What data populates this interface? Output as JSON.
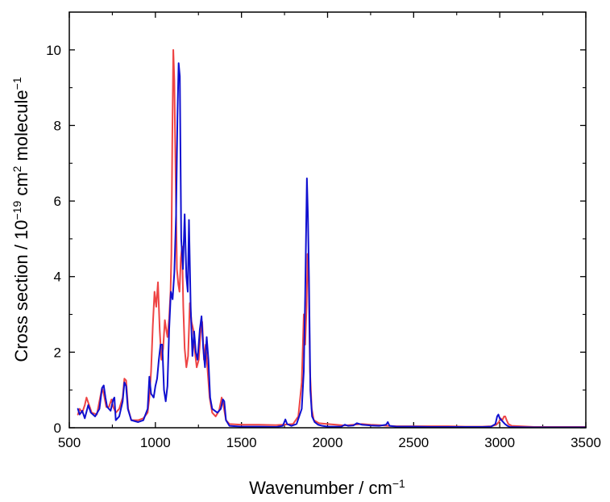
{
  "chart_data": {
    "type": "line",
    "title": "",
    "xlabel": "Wavenumber / cm",
    "xlabel_sup": "−1",
    "ylabel_parts": {
      "a": "Cross section / 10",
      "b": "−19",
      "c": " cm",
      "d": "2",
      "e": " molecule",
      "f": "−1"
    },
    "xlim": [
      500,
      3500
    ],
    "ylim": [
      0,
      11
    ],
    "xticks": [
      500,
      1000,
      1500,
      2000,
      2500,
      3000,
      3500
    ],
    "yticks": [
      0,
      2,
      4,
      6,
      8,
      10
    ],
    "grid": false,
    "legend": "none",
    "series": [
      {
        "color": "#1010d0",
        "points": [
          [
            550,
            0.5
          ],
          [
            560,
            0.35
          ],
          [
            575,
            0.45
          ],
          [
            590,
            0.25
          ],
          [
            610,
            0.6
          ],
          [
            625,
            0.4
          ],
          [
            650,
            0.3
          ],
          [
            675,
            0.5
          ],
          [
            690,
            1.05
          ],
          [
            700,
            1.12
          ],
          [
            710,
            0.8
          ],
          [
            720,
            0.55
          ],
          [
            740,
            0.45
          ],
          [
            755,
            0.75
          ],
          [
            762,
            0.8
          ],
          [
            770,
            0.2
          ],
          [
            790,
            0.3
          ],
          [
            810,
            0.7
          ],
          [
            820,
            1.2
          ],
          [
            830,
            1.1
          ],
          [
            840,
            0.5
          ],
          [
            860,
            0.2
          ],
          [
            900,
            0.15
          ],
          [
            930,
            0.2
          ],
          [
            955,
            0.5
          ],
          [
            965,
            1.35
          ],
          [
            975,
            0.9
          ],
          [
            990,
            0.8
          ],
          [
            1000,
            1.1
          ],
          [
            1010,
            1.3
          ],
          [
            1020,
            1.8
          ],
          [
            1030,
            2.2
          ],
          [
            1040,
            2.2
          ],
          [
            1050,
            1.0
          ],
          [
            1060,
            0.7
          ],
          [
            1070,
            1.1
          ],
          [
            1080,
            2.6
          ],
          [
            1090,
            3.6
          ],
          [
            1100,
            3.4
          ],
          [
            1110,
            4.1
          ],
          [
            1120,
            5.6
          ],
          [
            1128,
            8.2
          ],
          [
            1135,
            9.65
          ],
          [
            1142,
            9.3
          ],
          [
            1150,
            5.0
          ],
          [
            1160,
            4.2
          ],
          [
            1170,
            5.65
          ],
          [
            1180,
            4.0
          ],
          [
            1188,
            3.6
          ],
          [
            1195,
            5.5
          ],
          [
            1205,
            3.2
          ],
          [
            1215,
            1.9
          ],
          [
            1225,
            2.55
          ],
          [
            1235,
            2.0
          ],
          [
            1245,
            1.8
          ],
          [
            1258,
            2.6
          ],
          [
            1268,
            2.95
          ],
          [
            1278,
            2.1
          ],
          [
            1288,
            1.6
          ],
          [
            1298,
            2.4
          ],
          [
            1308,
            1.8
          ],
          [
            1318,
            0.8
          ],
          [
            1330,
            0.5
          ],
          [
            1345,
            0.45
          ],
          [
            1360,
            0.4
          ],
          [
            1380,
            0.5
          ],
          [
            1392,
            0.75
          ],
          [
            1400,
            0.7
          ],
          [
            1410,
            0.2
          ],
          [
            1430,
            0.05
          ],
          [
            1500,
            0.03
          ],
          [
            1600,
            0.03
          ],
          [
            1700,
            0.02
          ],
          [
            1740,
            0.05
          ],
          [
            1755,
            0.22
          ],
          [
            1765,
            0.1
          ],
          [
            1790,
            0.05
          ],
          [
            1820,
            0.1
          ],
          [
            1850,
            0.5
          ],
          [
            1862,
            1.5
          ],
          [
            1870,
            3.5
          ],
          [
            1876,
            5.4
          ],
          [
            1880,
            6.6
          ],
          [
            1886,
            5.6
          ],
          [
            1892,
            4.0
          ],
          [
            1900,
            1.0
          ],
          [
            1910,
            0.3
          ],
          [
            1925,
            0.15
          ],
          [
            1945,
            0.08
          ],
          [
            1970,
            0.05
          ],
          [
            2000,
            0.03
          ],
          [
            2050,
            0.03
          ],
          [
            2080,
            0.03
          ],
          [
            2100,
            0.08
          ],
          [
            2120,
            0.05
          ],
          [
            2150,
            0.06
          ],
          [
            2170,
            0.12
          ],
          [
            2200,
            0.08
          ],
          [
            2250,
            0.06
          ],
          [
            2300,
            0.05
          ],
          [
            2340,
            0.08
          ],
          [
            2350,
            0.15
          ],
          [
            2360,
            0.05
          ],
          [
            2400,
            0.03
          ],
          [
            2500,
            0.03
          ],
          [
            2600,
            0.02
          ],
          [
            2700,
            0.02
          ],
          [
            2800,
            0.02
          ],
          [
            2900,
            0.02
          ],
          [
            2950,
            0.03
          ],
          [
            2975,
            0.1
          ],
          [
            2985,
            0.3
          ],
          [
            2992,
            0.35
          ],
          [
            3000,
            0.25
          ],
          [
            3010,
            0.2
          ],
          [
            3020,
            0.15
          ],
          [
            3030,
            0.1
          ],
          [
            3045,
            0.05
          ],
          [
            3060,
            0.02
          ],
          [
            3200,
            0.01
          ],
          [
            3400,
            0.01
          ],
          [
            3500,
            0.01
          ]
        ]
      },
      {
        "color": "#ee4444",
        "points": [
          [
            550,
            0.35
          ],
          [
            560,
            0.5
          ],
          [
            575,
            0.4
          ],
          [
            590,
            0.6
          ],
          [
            600,
            0.8
          ],
          [
            615,
            0.6
          ],
          [
            630,
            0.4
          ],
          [
            660,
            0.35
          ],
          [
            675,
            0.7
          ],
          [
            690,
            1.05
          ],
          [
            700,
            0.9
          ],
          [
            715,
            0.55
          ],
          [
            730,
            0.55
          ],
          [
            745,
            0.75
          ],
          [
            755,
            0.55
          ],
          [
            770,
            0.4
          ],
          [
            790,
            0.5
          ],
          [
            810,
            0.8
          ],
          [
            820,
            1.3
          ],
          [
            830,
            1.25
          ],
          [
            842,
            0.5
          ],
          [
            860,
            0.2
          ],
          [
            900,
            0.2
          ],
          [
            930,
            0.25
          ],
          [
            955,
            0.4
          ],
          [
            965,
            0.8
          ],
          [
            975,
            1.5
          ],
          [
            985,
            2.7
          ],
          [
            995,
            3.6
          ],
          [
            1005,
            3.2
          ],
          [
            1015,
            3.85
          ],
          [
            1025,
            2.6
          ],
          [
            1035,
            1.8
          ],
          [
            1045,
            2.1
          ],
          [
            1055,
            2.85
          ],
          [
            1063,
            2.6
          ],
          [
            1070,
            2.4
          ],
          [
            1080,
            2.9
          ],
          [
            1088,
            3.6
          ],
          [
            1093,
            4.6
          ],
          [
            1098,
            7.5
          ],
          [
            1104,
            10.0
          ],
          [
            1110,
            9.2
          ],
          [
            1118,
            6.5
          ],
          [
            1125,
            4.2
          ],
          [
            1133,
            3.8
          ],
          [
            1140,
            3.6
          ],
          [
            1148,
            4.5
          ],
          [
            1155,
            4.8
          ],
          [
            1162,
            3.2
          ],
          [
            1170,
            2.1
          ],
          [
            1180,
            1.6
          ],
          [
            1190,
            1.9
          ],
          [
            1200,
            3.3
          ],
          [
            1210,
            2.8
          ],
          [
            1220,
            2.6
          ],
          [
            1230,
            2.0
          ],
          [
            1240,
            1.6
          ],
          [
            1252,
            1.8
          ],
          [
            1262,
            2.5
          ],
          [
            1272,
            2.8
          ],
          [
            1282,
            1.8
          ],
          [
            1292,
            2.2
          ],
          [
            1302,
            1.6
          ],
          [
            1315,
            0.8
          ],
          [
            1330,
            0.4
          ],
          [
            1350,
            0.3
          ],
          [
            1370,
            0.45
          ],
          [
            1385,
            0.8
          ],
          [
            1395,
            0.6
          ],
          [
            1410,
            0.2
          ],
          [
            1430,
            0.1
          ],
          [
            1500,
            0.08
          ],
          [
            1600,
            0.08
          ],
          [
            1700,
            0.07
          ],
          [
            1800,
            0.1
          ],
          [
            1830,
            0.3
          ],
          [
            1850,
            1.2
          ],
          [
            1862,
            3.0
          ],
          [
            1870,
            2.2
          ],
          [
            1878,
            3.2
          ],
          [
            1884,
            4.6
          ],
          [
            1890,
            4.0
          ],
          [
            1898,
            1.5
          ],
          [
            1908,
            0.5
          ],
          [
            1920,
            0.2
          ],
          [
            1950,
            0.12
          ],
          [
            2000,
            0.1
          ],
          [
            2050,
            0.08
          ],
          [
            2100,
            0.06
          ],
          [
            2150,
            0.08
          ],
          [
            2200,
            0.1
          ],
          [
            2250,
            0.08
          ],
          [
            2300,
            0.07
          ],
          [
            2350,
            0.05
          ],
          [
            2400,
            0.04
          ],
          [
            2500,
            0.04
          ],
          [
            2600,
            0.04
          ],
          [
            2700,
            0.04
          ],
          [
            2800,
            0.03
          ],
          [
            2900,
            0.03
          ],
          [
            2950,
            0.04
          ],
          [
            2980,
            0.08
          ],
          [
            2995,
            0.15
          ],
          [
            3005,
            0.25
          ],
          [
            3015,
            0.2
          ],
          [
            3025,
            0.3
          ],
          [
            3032,
            0.3
          ],
          [
            3040,
            0.2
          ],
          [
            3050,
            0.1
          ],
          [
            3070,
            0.05
          ],
          [
            3200,
            0.02
          ],
          [
            3400,
            0.02
          ],
          [
            3500,
            0.02
          ]
        ]
      }
    ]
  }
}
